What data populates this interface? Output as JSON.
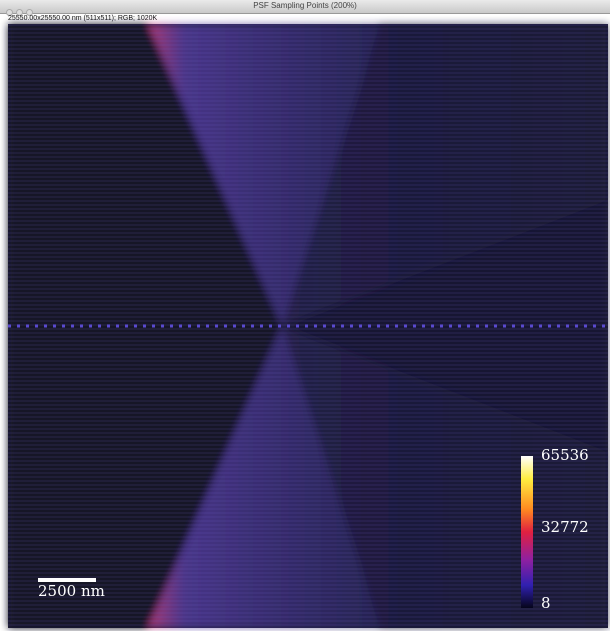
{
  "window": {
    "title": "PSF Sampling Points (200%)",
    "info": "25550.00x25550.00 nm (511x511); RGB; 1020K"
  },
  "image": {
    "scale_bar": "2500 nm",
    "colorbar": {
      "ticks": [
        65536,
        32772,
        8
      ]
    }
  }
}
